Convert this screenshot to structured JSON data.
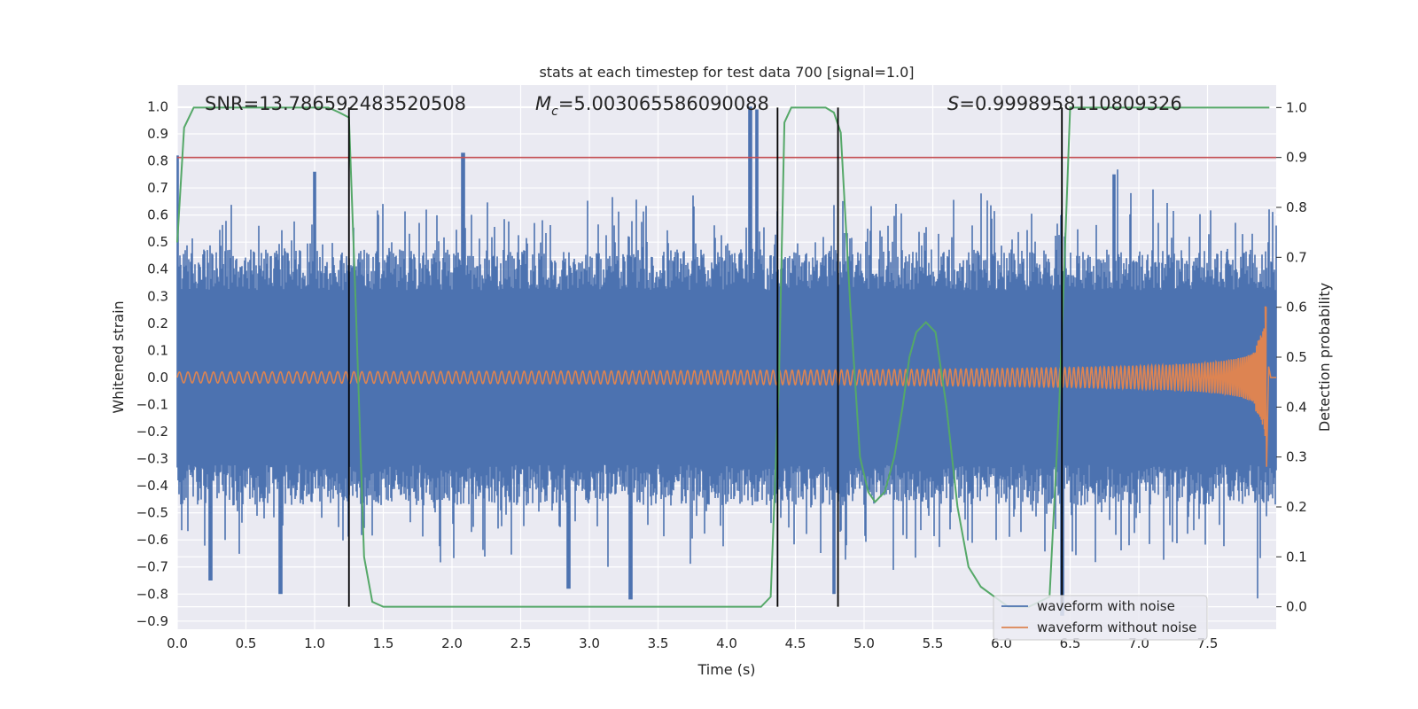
{
  "chart_data": {
    "type": "line",
    "title": "stats at each timestep for test data 700 [signal=1.0]",
    "xlabel": "Time (s)",
    "ylabel": "Whitened strain",
    "ylabel_right": "Detection probability",
    "xlim": [
      0.0,
      8.0
    ],
    "ylim": [
      -0.93,
      1.08
    ],
    "ylim_right": [
      -0.045,
      1.045
    ],
    "x_ticks": [
      "0.0",
      "0.5",
      "1.0",
      "1.5",
      "2.0",
      "2.5",
      "3.0",
      "3.5",
      "4.0",
      "4.5",
      "5.0",
      "5.5",
      "6.0",
      "6.5",
      "7.0",
      "7.5"
    ],
    "y_ticks": [
      "1.0",
      "0.9",
      "0.8",
      "0.7",
      "0.6",
      "0.5",
      "0.4",
      "0.3",
      "0.2",
      "0.1",
      "0.0",
      "−0.1",
      "−0.2",
      "−0.3",
      "−0.4",
      "−0.5",
      "−0.6",
      "−0.7",
      "−0.8",
      "−0.9"
    ],
    "y_ticks_right": [
      "1.0",
      "0.9",
      "0.8",
      "0.7",
      "0.6",
      "0.5",
      "0.4",
      "0.3",
      "0.2",
      "0.1",
      "0.0"
    ],
    "annotations": {
      "snr": "SNR=13.786592483520508",
      "mc_symbol": "M",
      "mc_sub": "c",
      "mc_value": "=5.003065586090088",
      "s_symbol": "S",
      "s_value": "=0.9998958110809326"
    },
    "threshold_right": 0.9,
    "threshold_color": "#c44e52",
    "event_lines_x": [
      1.25,
      4.37,
      4.81,
      6.44
    ],
    "noisy_waveform": {
      "name": "waveform with noise",
      "color": "#4c72b0",
      "t_end": 8.0,
      "envelope_base": 0.43,
      "peak_spikes": [
        [
          0.0,
          0.82
        ],
        [
          2.08,
          0.83
        ],
        [
          4.17,
          1.0
        ],
        [
          4.22,
          0.99
        ],
        [
          1.0,
          0.76
        ],
        [
          6.82,
          0.75
        ]
      ],
      "trough_spikes": [
        [
          0.75,
          -0.8
        ],
        [
          3.3,
          -0.82
        ],
        [
          4.78,
          -0.8
        ],
        [
          2.85,
          -0.78
        ],
        [
          0.24,
          -0.75
        ],
        [
          6.44,
          -0.88
        ]
      ]
    },
    "clean_waveform": {
      "name": "waveform without noise",
      "color": "#dd8452",
      "t_merger": 7.93,
      "amp_start": 0.02,
      "amp_mid": 0.05,
      "amp_peak": 0.26,
      "amp_min_peak": -0.33
    },
    "probability": {
      "name": "detection probability",
      "color": "#55a868",
      "x": [
        0.0,
        0.05,
        0.12,
        0.2,
        0.4,
        0.6,
        0.8,
        1.0,
        1.1,
        1.18,
        1.25,
        1.3,
        1.36,
        1.42,
        1.5,
        1.6,
        2.0,
        3.0,
        4.0,
        4.25,
        4.32,
        4.38,
        4.42,
        4.47,
        4.55,
        4.65,
        4.72,
        4.78,
        4.83,
        4.9,
        4.97,
        5.03,
        5.08,
        5.15,
        5.22,
        5.28,
        5.33,
        5.38,
        5.45,
        5.52,
        5.6,
        5.68,
        5.76,
        5.85,
        5.95,
        6.05,
        6.2,
        6.35,
        6.42,
        6.46,
        6.5,
        6.55,
        7.0,
        7.5,
        7.95
      ],
      "y": [
        0.73,
        0.96,
        1.0,
        1.0,
        1.0,
        1.0,
        1.0,
        1.0,
        1.0,
        0.99,
        0.98,
        0.6,
        0.1,
        0.01,
        0.0,
        0.0,
        0.0,
        0.0,
        0.0,
        0.0,
        0.02,
        0.45,
        0.97,
        1.0,
        1.0,
        1.0,
        1.0,
        0.99,
        0.95,
        0.6,
        0.3,
        0.23,
        0.21,
        0.23,
        0.3,
        0.4,
        0.5,
        0.55,
        0.57,
        0.55,
        0.4,
        0.2,
        0.08,
        0.04,
        0.02,
        0.0,
        0.0,
        0.02,
        0.4,
        0.7,
        1.0,
        1.0,
        1.0,
        1.0,
        1.0
      ]
    },
    "legend": {
      "position": "lower-right",
      "entries": [
        "waveform with noise",
        "waveform without noise"
      ]
    },
    "grid": true
  }
}
